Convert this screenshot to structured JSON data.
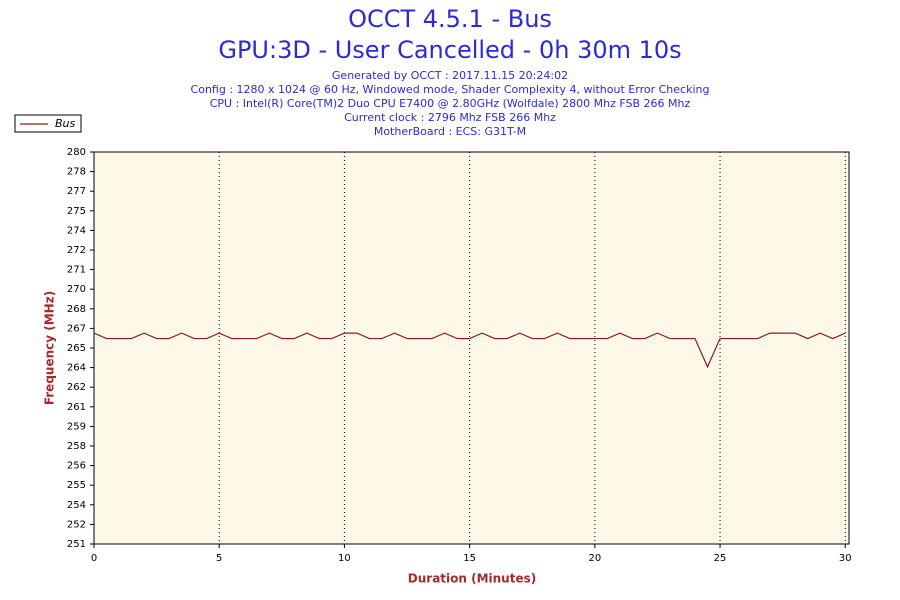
{
  "chart_data": {
    "type": "line",
    "title": "OCCT 4.5.1 - Bus",
    "subtitle": "GPU:3D - User Cancelled - 0h 30m 10s",
    "info_lines": [
      "Generated by OCCT : 2017.11.15 20:24:02",
      "Config : 1280 x 1024 @ 60 Hz, Windowed mode, Shader Complexity 4, without Error Checking",
      "CPU : Intel(R) Core(TM)2 Duo CPU E7400 @ 2.80GHz (Wolfdale) 2800 Mhz FSB 266 Mhz",
      "Current clock : 2796 Mhz FSB 266 Mhz",
      "MotherBoard : ECS: G31T-M"
    ],
    "x_label": "Duration (Minutes)",
    "y_label": "Frequency (MHz)",
    "xlim": [
      0,
      30.15
    ],
    "xticks": [
      0,
      5,
      10,
      15,
      20,
      25,
      30
    ],
    "ylim": [
      251,
      280
    ],
    "yticks": [
      {
        "value": 251,
        "label": "251"
      },
      {
        "value": 252.45,
        "label": "252"
      },
      {
        "value": 253.9,
        "label": "254"
      },
      {
        "value": 255.35,
        "label": "255"
      },
      {
        "value": 256.8,
        "label": "256"
      },
      {
        "value": 258.25,
        "label": "258"
      },
      {
        "value": 259.7,
        "label": "259"
      },
      {
        "value": 261.15,
        "label": "261"
      },
      {
        "value": 262.6,
        "label": "262"
      },
      {
        "value": 264.05,
        "label": "264"
      },
      {
        "value": 265.5,
        "label": "265"
      },
      {
        "value": 266.95,
        "label": "267"
      },
      {
        "value": 268.4,
        "label": "268"
      },
      {
        "value": 269.85,
        "label": "270"
      },
      {
        "value": 271.3,
        "label": "271"
      },
      {
        "value": 272.75,
        "label": "272"
      },
      {
        "value": 274.2,
        "label": "274"
      },
      {
        "value": 275.65,
        "label": "275"
      },
      {
        "value": 277.1,
        "label": "277"
      },
      {
        "value": 278.55,
        "label": "278"
      },
      {
        "value": 280,
        "label": "280"
      }
    ],
    "grid": true,
    "legend_position": "top-left",
    "x": [
      0,
      0.5,
      1,
      1.5,
      2,
      2.5,
      3,
      3.5,
      4,
      4.5,
      5,
      5.5,
      6,
      6.5,
      7,
      7.5,
      8,
      8.5,
      9,
      9.5,
      10,
      10.5,
      11,
      11.5,
      12,
      12.5,
      13,
      13.5,
      14,
      14.5,
      15,
      15.5,
      16,
      16.5,
      17,
      17.5,
      18,
      18.5,
      19,
      19.5,
      20,
      20.5,
      21,
      21.5,
      22,
      22.5,
      23,
      23.5,
      24,
      24.5,
      25,
      25.5,
      26,
      26.5,
      27,
      27.5,
      28,
      28.5,
      29,
      29.5,
      30
    ],
    "series": [
      {
        "name": "Bus",
        "color": "#8b1a1a",
        "values": [
          266.6,
          266.2,
          266.2,
          266.2,
          266.6,
          266.2,
          266.2,
          266.6,
          266.2,
          266.2,
          266.6,
          266.2,
          266.2,
          266.2,
          266.6,
          266.2,
          266.2,
          266.6,
          266.2,
          266.2,
          266.6,
          266.6,
          266.2,
          266.2,
          266.6,
          266.2,
          266.2,
          266.2,
          266.6,
          266.2,
          266.2,
          266.6,
          266.2,
          266.2,
          266.6,
          266.2,
          266.2,
          266.6,
          266.2,
          266.2,
          266.2,
          266.2,
          266.6,
          266.2,
          266.2,
          266.6,
          266.2,
          266.2,
          266.2,
          264.1,
          266.2,
          266.2,
          266.2,
          266.2,
          266.6,
          266.6,
          266.6,
          266.2,
          266.6,
          266.2,
          266.6
        ]
      }
    ]
  }
}
